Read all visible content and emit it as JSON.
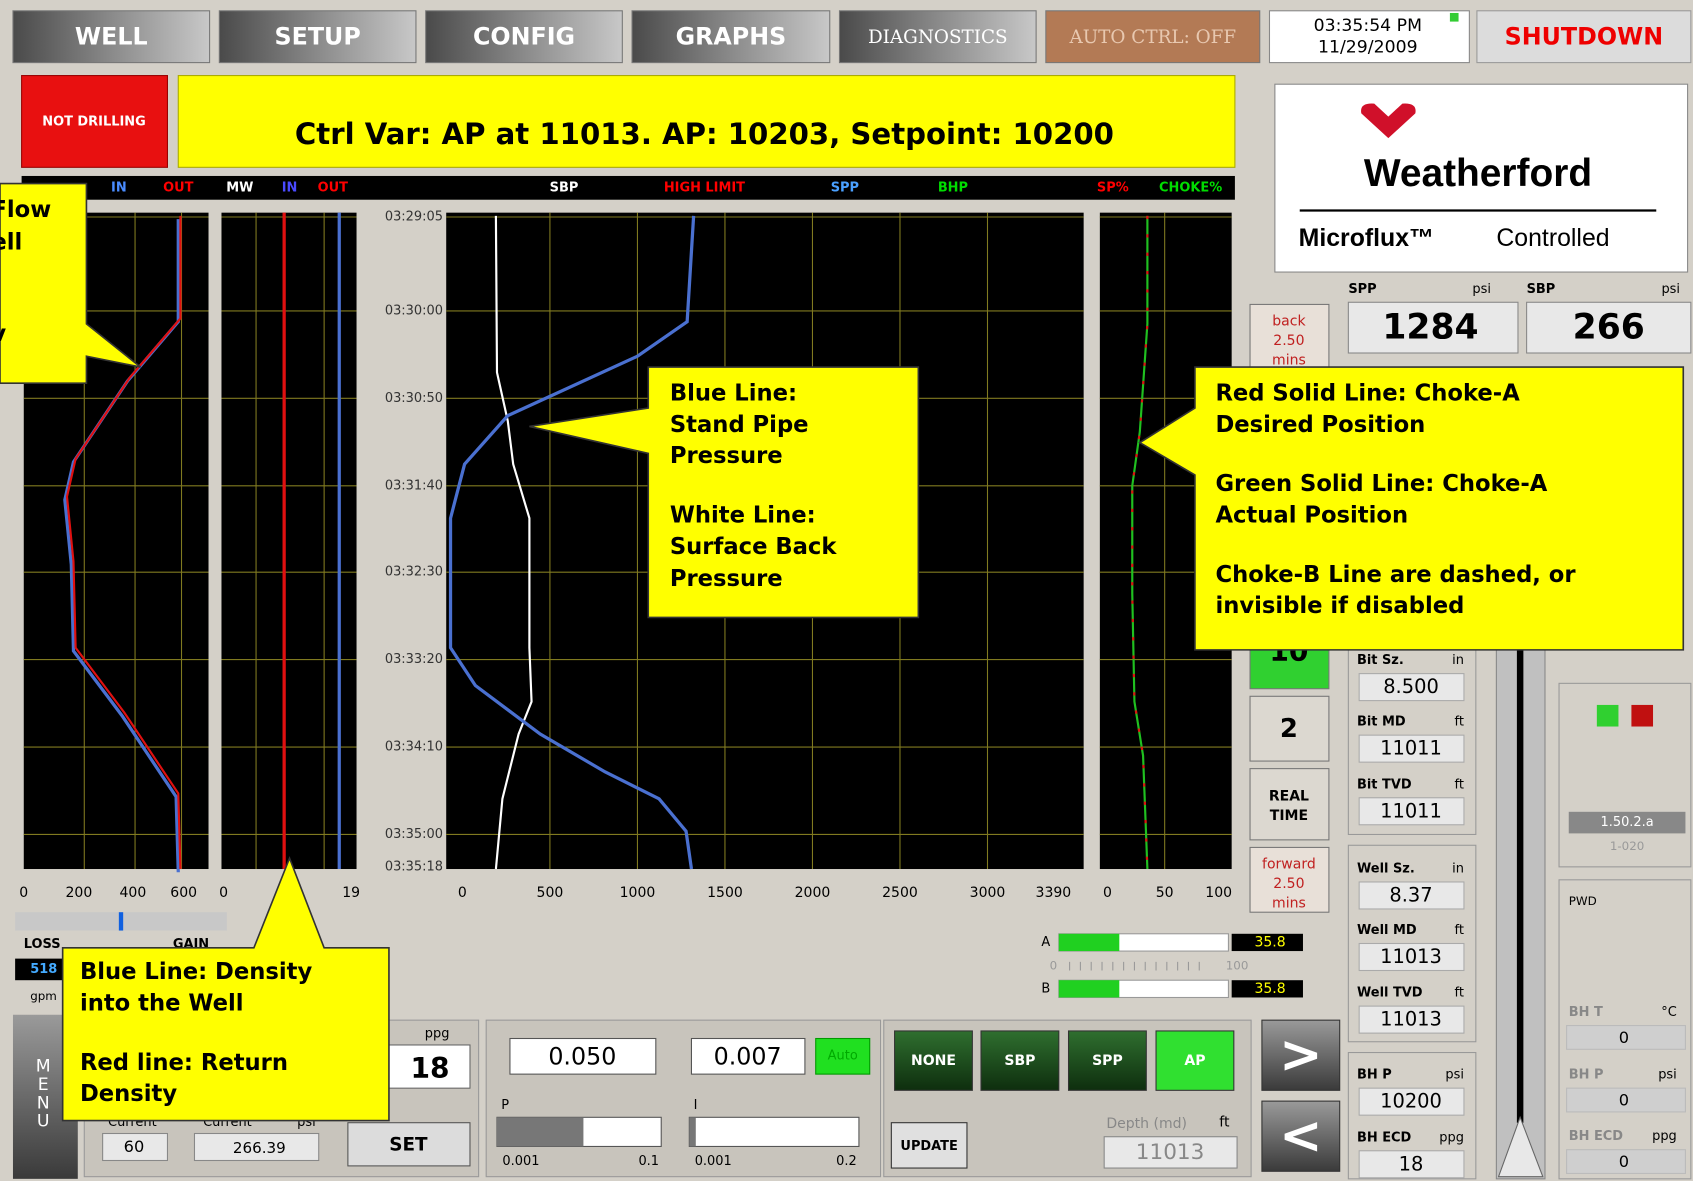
{
  "nav": [
    "WELL",
    "SETUP",
    "CONFIG",
    "GRAPHS",
    "DIAGNOSTICS",
    "AUTO CTRL: OFF"
  ],
  "clock": {
    "time": "03:35:54 PM",
    "date": "11/29/2009"
  },
  "shutdown": "SHUTDOWN",
  "status": "NOT DRILLING",
  "banner": "Ctrl Var: AP at 11013. AP: 10203, Setpoint: 10200",
  "logo": {
    "name": "Weatherford",
    "product": "Microflux™",
    "suffix": "Controlled"
  },
  "graph_header": [
    "IN",
    "OUT",
    "MW",
    "IN",
    "OUT",
    "SBP",
    "HIGH LIMIT",
    "SPP",
    "BHP",
    "SP%",
    "CHOKE%"
  ],
  "time_labels": [
    "03:29:05",
    "03:30:00",
    "03:30:50",
    "03:31:40",
    "03:32:30",
    "03:33:20",
    "03:34:10",
    "03:35:00",
    "03:35:18"
  ],
  "axes": {
    "flow": [
      "0",
      "200",
      "400",
      "600"
    ],
    "density": [
      "0",
      "19"
    ],
    "pressure": [
      "0",
      "500",
      "1000",
      "1500",
      "2000",
      "2500",
      "3000",
      "3390"
    ],
    "choke": [
      "0",
      "50",
      "100"
    ]
  },
  "callouts": {
    "left": [
      "Flow",
      "ell",
      "v"
    ],
    "center": [
      "Blue Line:",
      "Stand Pipe",
      "Pressure",
      "White Line:",
      "Surface Back",
      "Pressure"
    ],
    "right": [
      "Red Solid Line: Choke-A",
      "Desired Position",
      "Green Solid Line: Choke-A",
      "Actual Position",
      "Choke-B Line are dashed, or",
      "invisible if disabled"
    ],
    "bottom": [
      "Blue Line: Density",
      "into the Well",
      "Red line: Return",
      "Density"
    ]
  },
  "readouts": {
    "spp": {
      "label": "SPP",
      "unit": "psi",
      "value": "1284"
    },
    "sbp": {
      "label": "SBP",
      "unit": "psi",
      "value": "266"
    }
  },
  "time_nav": {
    "back": [
      "back",
      "2.50",
      "mins"
    ],
    "preset_a": "10",
    "preset_b": "2",
    "realtime": [
      "REAL",
      "TIME"
    ],
    "forward": [
      "forward",
      "2.50",
      "mins"
    ]
  },
  "well_info": [
    {
      "label": "Bit Sz.",
      "unit": "in",
      "value": "8.500"
    },
    {
      "label": "Bit MD",
      "unit": "ft",
      "value": "11011"
    },
    {
      "label": "Bit TVD",
      "unit": "ft",
      "value": "11011"
    },
    {
      "label": "Well Sz.",
      "unit": "in",
      "value": "8.37"
    },
    {
      "label": "Well MD",
      "unit": "ft",
      "value": "11013"
    },
    {
      "label": "Well TVD",
      "unit": "ft",
      "value": "11013"
    },
    {
      "label": "BH P",
      "unit": "psi",
      "value": "10200"
    },
    {
      "label": "BH ECD",
      "unit": "ppg",
      "value": "18"
    }
  ],
  "pwd": {
    "version": "1.50.2.a",
    "id": "1-020",
    "title": "PWD",
    "fields": [
      {
        "label": "BH T",
        "unit": "°C",
        "value": "0"
      },
      {
        "label": "BH P",
        "unit": "psi",
        "value": "0"
      },
      {
        "label": "BH ECD",
        "unit": "ppg",
        "value": "0"
      }
    ]
  },
  "flow_balance": {
    "loss": "LOSS",
    "gain": "GAIN",
    "value": "518",
    "unit": "gpm"
  },
  "menu": [
    "M",
    "E",
    "N",
    "U"
  ],
  "setpoints": {
    "current_a_label": "Current",
    "current_a": "60",
    "current_b_label": "Current",
    "current_b_unit": "psi",
    "current_b": "266.39",
    "unit": "ppg",
    "value": "18",
    "set": "SET"
  },
  "pid": {
    "p": {
      "label": "P",
      "value": "0.050",
      "min": "0.001",
      "max": "0.1"
    },
    "i": {
      "label": "I",
      "value": "0.007",
      "min": "0.001",
      "max": "0.2"
    },
    "auto": "Auto"
  },
  "modes": [
    "NONE",
    "SBP",
    "SPP",
    "AP"
  ],
  "update": "UPDATE",
  "depth": {
    "label": "Depth (md)",
    "unit": "ft",
    "value": "11013"
  },
  "chokes": {
    "a": {
      "label": "A",
      "value": "35.8"
    },
    "b": {
      "label": "B",
      "value": "35.8"
    },
    "scale": [
      "0",
      "100"
    ]
  },
  "arrows": [
    ">",
    "<"
  ]
}
